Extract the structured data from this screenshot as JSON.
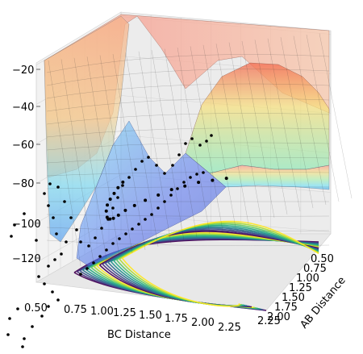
{
  "chart_data": {
    "type": "surface3d",
    "title": "",
    "xlabel": "BC Distance",
    "ylabel": "AB Distance",
    "zlabel": "",
    "x_ticks": [
      "0.50",
      "0.75",
      "1.00",
      "1.25",
      "1.50",
      "1.75",
      "2.00",
      "2.25"
    ],
    "y_ticks": [
      "0.50",
      "0.75",
      "1.00",
      "1.25",
      "1.50",
      "1.75",
      "2.00",
      "2.25"
    ],
    "z_ticks": [
      "−120",
      "−100",
      "−80",
      "−60",
      "−40",
      "−20"
    ],
    "xlim": [
      0.5,
      2.4
    ],
    "ylim": [
      0.5,
      2.4
    ],
    "zlim": [
      -130,
      -20
    ],
    "grid": true,
    "surface_colormap": "jet (semi-transparent)",
    "contour_colormap": "viridis",
    "trajectory_color": "#000000",
    "series": [
      {
        "type": "surface",
        "description_values": "potential energy surface, high walls at short distances, valley along reaction path, plateau near -70 at large distances"
      },
      {
        "type": "contour",
        "offset_z": -130
      },
      {
        "type": "scatter-trajectory",
        "points": [
          [
            0.74,
            2.3,
            -100
          ],
          [
            0.74,
            2.15,
            -101
          ],
          [
            0.75,
            2.0,
            -102
          ],
          [
            0.76,
            1.85,
            -103
          ],
          [
            0.78,
            1.7,
            -104
          ],
          [
            0.82,
            1.55,
            -105
          ],
          [
            0.88,
            1.4,
            -106
          ],
          [
            0.95,
            1.28,
            -105
          ],
          [
            1.02,
            1.18,
            -103
          ],
          [
            1.1,
            1.1,
            -100
          ],
          [
            1.2,
            1.02,
            -96
          ],
          [
            1.32,
            0.95,
            -92
          ],
          [
            1.45,
            0.9,
            -88
          ],
          [
            1.6,
            0.86,
            -84
          ],
          [
            1.75,
            0.83,
            -80
          ],
          [
            1.9,
            0.8,
            -77
          ],
          [
            2.05,
            0.78,
            -74
          ],
          [
            2.2,
            0.77,
            -72
          ],
          [
            2.35,
            0.76,
            -70
          ]
        ]
      }
    ]
  }
}
